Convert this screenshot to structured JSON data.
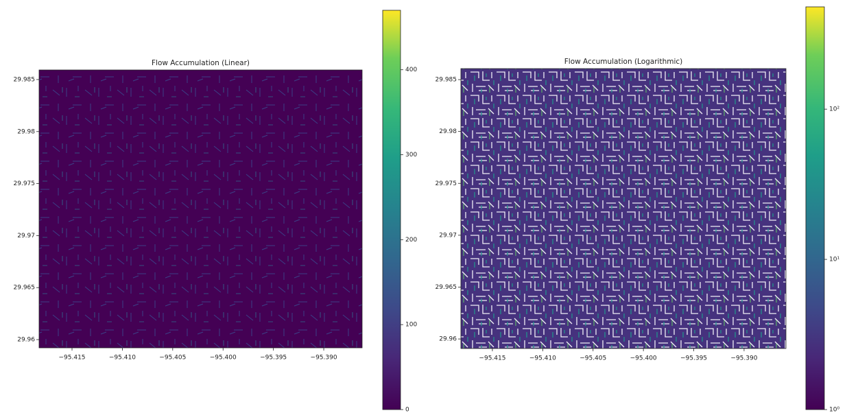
{
  "chart_data": [
    {
      "type": "heatmap",
      "title": "Flow Accumulation (Linear)",
      "xlim": [
        -95.41827,
        -95.38619
      ],
      "ylim": [
        29.95921,
        29.98592
      ],
      "xticks": [
        {
          "value": -95.415,
          "label": "−95.415"
        },
        {
          "value": -95.41,
          "label": "−95.410"
        },
        {
          "value": -95.405,
          "label": "−95.405"
        },
        {
          "value": -95.4,
          "label": "−95.400"
        },
        {
          "value": -95.395,
          "label": "−95.395"
        },
        {
          "value": -95.39,
          "label": "−95.390"
        }
      ],
      "yticks": [
        29.96,
        29.965,
        29.97,
        29.975,
        29.98,
        29.985
      ],
      "colormap": "viridis",
      "log_color": false,
      "clim": [
        0,
        470
      ],
      "cticks": [
        0,
        100,
        200,
        300,
        400
      ]
    },
    {
      "type": "heatmap",
      "title": "Flow Accumulation (Logarithmic)",
      "xlim": [
        -95.41813,
        -95.38584
      ],
      "ylim": [
        29.95908,
        29.98606
      ],
      "xticks": [
        {
          "value": -95.415,
          "label": "−95.415"
        },
        {
          "value": -95.41,
          "label": "−95.410"
        },
        {
          "value": -95.405,
          "label": "−95.405"
        },
        {
          "value": -95.4,
          "label": "−95.400"
        },
        {
          "value": -95.395,
          "label": "−95.395"
        },
        {
          "value": -95.39,
          "label": "−95.390"
        }
      ],
      "yticks": [
        29.96,
        29.965,
        29.97,
        29.975,
        29.98,
        29.985
      ],
      "colormap": "viridis",
      "log_color": true,
      "clim": [
        1,
        480
      ],
      "cticks": [
        {
          "value": 1,
          "label": "10⁰"
        },
        {
          "value": 10,
          "label": "10¹"
        },
        {
          "value": 100,
          "label": "10²"
        }
      ]
    }
  ]
}
